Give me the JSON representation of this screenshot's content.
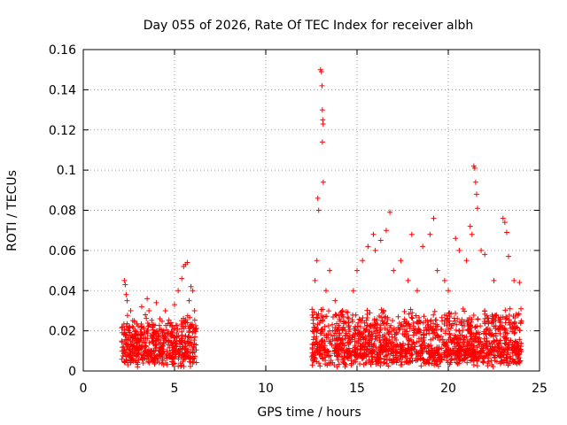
{
  "chart_data": {
    "type": "scatter",
    "title": "Day 055 of 2026, Rate Of TEC Index for receiver albh",
    "xlabel": "GPS time / hours",
    "ylabel": "ROTI / TECUs",
    "xlim": [
      0,
      25
    ],
    "ylim": [
      0,
      0.16
    ],
    "x_ticks": [
      0,
      5,
      10,
      15,
      20,
      25
    ],
    "x_tick_labels": [
      "0",
      "5",
      "10",
      "15",
      "20",
      "25"
    ],
    "y_ticks": [
      0,
      0.02,
      0.04,
      0.06,
      0.08,
      0.1,
      0.12,
      0.14,
      0.16
    ],
    "y_tick_labels": [
      "0",
      "0.02",
      "0.04",
      "0.06",
      "0.08",
      "0.1",
      "0.12",
      "0.14",
      "0.16"
    ],
    "grid": true,
    "legend": "none",
    "marker": "+",
    "color": "#ff0000",
    "series": [
      {
        "points": [
          [
            2.2,
            0.012
          ],
          [
            2.25,
            0.045
          ],
          [
            2.3,
            0.043
          ],
          [
            2.35,
            0.038
          ],
          [
            2.4,
            0.035
          ],
          [
            2.5,
            0.02
          ],
          [
            2.6,
            0.03
          ],
          [
            2.8,
            0.025
          ],
          [
            3.0,
            0.018
          ],
          [
            3.2,
            0.032
          ],
          [
            3.4,
            0.028
          ],
          [
            3.5,
            0.036
          ],
          [
            3.6,
            0.03
          ],
          [
            3.8,
            0.022
          ],
          [
            4.0,
            0.034
          ],
          [
            4.2,
            0.026
          ],
          [
            4.5,
            0.03
          ],
          [
            4.8,
            0.024
          ],
          [
            5.0,
            0.033
          ],
          [
            5.2,
            0.04
          ],
          [
            5.4,
            0.046
          ],
          [
            5.5,
            0.052
          ],
          [
            5.6,
            0.053
          ],
          [
            5.7,
            0.054
          ],
          [
            5.8,
            0.035
          ],
          [
            5.9,
            0.042
          ],
          [
            6.0,
            0.04
          ],
          [
            6.1,
            0.03
          ],
          [
            12.7,
            0.045
          ],
          [
            12.8,
            0.055
          ],
          [
            12.85,
            0.086
          ],
          [
            12.9,
            0.08
          ],
          [
            13.0,
            0.15
          ],
          [
            13.05,
            0.149
          ],
          [
            13.08,
            0.142
          ],
          [
            13.1,
            0.13
          ],
          [
            13.12,
            0.125
          ],
          [
            13.14,
            0.123
          ],
          [
            13.1,
            0.114
          ],
          [
            13.15,
            0.094
          ],
          [
            13.3,
            0.04
          ],
          [
            13.5,
            0.05
          ],
          [
            13.8,
            0.035
          ],
          [
            14.2,
            0.03
          ],
          [
            14.8,
            0.04
          ],
          [
            15.0,
            0.05
          ],
          [
            15.3,
            0.055
          ],
          [
            15.6,
            0.062
          ],
          [
            15.9,
            0.068
          ],
          [
            16.0,
            0.06
          ],
          [
            16.3,
            0.065
          ],
          [
            16.6,
            0.07
          ],
          [
            16.8,
            0.079
          ],
          [
            17.0,
            0.05
          ],
          [
            17.4,
            0.055
          ],
          [
            17.8,
            0.045
          ],
          [
            18.0,
            0.068
          ],
          [
            18.3,
            0.04
          ],
          [
            18.6,
            0.062
          ],
          [
            19.0,
            0.068
          ],
          [
            19.2,
            0.076
          ],
          [
            19.4,
            0.05
          ],
          [
            19.8,
            0.045
          ],
          [
            20.0,
            0.04
          ],
          [
            20.4,
            0.066
          ],
          [
            20.6,
            0.06
          ],
          [
            21.0,
            0.055
          ],
          [
            21.2,
            0.072
          ],
          [
            21.3,
            0.068
          ],
          [
            21.4,
            0.102
          ],
          [
            21.45,
            0.101
          ],
          [
            21.5,
            0.094
          ],
          [
            21.55,
            0.088
          ],
          [
            21.6,
            0.081
          ],
          [
            21.8,
            0.06
          ],
          [
            22.0,
            0.058
          ],
          [
            22.5,
            0.045
          ],
          [
            23.0,
            0.076
          ],
          [
            23.1,
            0.074
          ],
          [
            23.2,
            0.069
          ],
          [
            23.3,
            0.057
          ],
          [
            23.6,
            0.045
          ],
          [
            23.9,
            0.044
          ]
        ]
      }
    ]
  }
}
